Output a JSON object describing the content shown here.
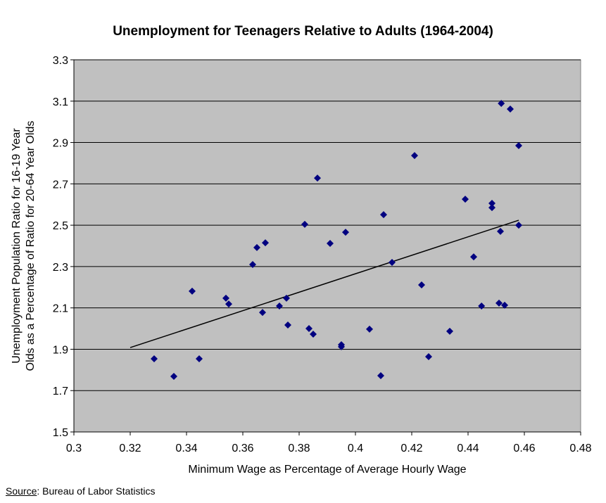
{
  "chart_data": {
    "type": "scatter",
    "title": "Unemployment for Teenagers Relative to Adults (1964-2004)",
    "xlabel": "Minimum Wage as Percentage of Average Hourly Wage",
    "ylabel_lines": [
      "Unemployment Population Ratio for 16-19 Year",
      "Olds as a Percentage of Ratio for 20-64 Year Olds"
    ],
    "xlim": [
      0.3,
      0.48
    ],
    "ylim": [
      1.5,
      3.3
    ],
    "xticks": [
      "0.3",
      "0.32",
      "0.34",
      "0.36",
      "0.38",
      "0.4",
      "0.42",
      "0.44",
      "0.46",
      "0.48"
    ],
    "yticks": [
      "1.5",
      "1.7",
      "1.9",
      "2.1",
      "2.3",
      "2.5",
      "2.7",
      "2.9",
      "3.1",
      "3.3"
    ],
    "grid": "horizontal",
    "marker": "diamond",
    "colors": {
      "plot_bg": "#c0c0c0",
      "marker": "#000080",
      "trendline": "#000000",
      "grid": "#000000"
    },
    "points": [
      [
        0.3285,
        1.854
      ],
      [
        0.3355,
        1.769
      ],
      [
        0.3445,
        1.854
      ],
      [
        0.342,
        2.181
      ],
      [
        0.354,
        2.147
      ],
      [
        0.355,
        2.119
      ],
      [
        0.3635,
        2.31
      ],
      [
        0.365,
        2.392
      ],
      [
        0.368,
        2.415
      ],
      [
        0.367,
        2.078
      ],
      [
        0.373,
        2.109
      ],
      [
        0.3755,
        2.147
      ],
      [
        0.376,
        2.017
      ],
      [
        0.3865,
        2.728
      ],
      [
        0.382,
        2.504
      ],
      [
        0.3965,
        2.466
      ],
      [
        0.391,
        2.412
      ],
      [
        0.41,
        2.551
      ],
      [
        0.413,
        2.32
      ],
      [
        0.4235,
        2.211
      ],
      [
        0.3835,
        2.0
      ],
      [
        0.385,
        1.973
      ],
      [
        0.395,
        1.922
      ],
      [
        0.395,
        1.912
      ],
      [
        0.405,
        1.997
      ],
      [
        0.409,
        1.772
      ],
      [
        0.426,
        1.864
      ],
      [
        0.421,
        2.837
      ],
      [
        0.4518,
        3.089
      ],
      [
        0.455,
        3.062
      ],
      [
        0.458,
        2.885
      ],
      [
        0.439,
        2.626
      ],
      [
        0.4485,
        2.606
      ],
      [
        0.4485,
        2.585
      ],
      [
        0.458,
        2.5
      ],
      [
        0.4515,
        2.47
      ],
      [
        0.442,
        2.347
      ],
      [
        0.4448,
        2.109
      ],
      [
        0.451,
        2.123
      ],
      [
        0.453,
        2.113
      ],
      [
        0.4335,
        1.987
      ]
    ],
    "trendline": {
      "type": "linear",
      "from": [
        0.32,
        1.908
      ],
      "to": [
        0.458,
        2.524
      ]
    }
  },
  "source": {
    "label": "Source",
    "text": ": Bureau of Labor Statistics"
  }
}
